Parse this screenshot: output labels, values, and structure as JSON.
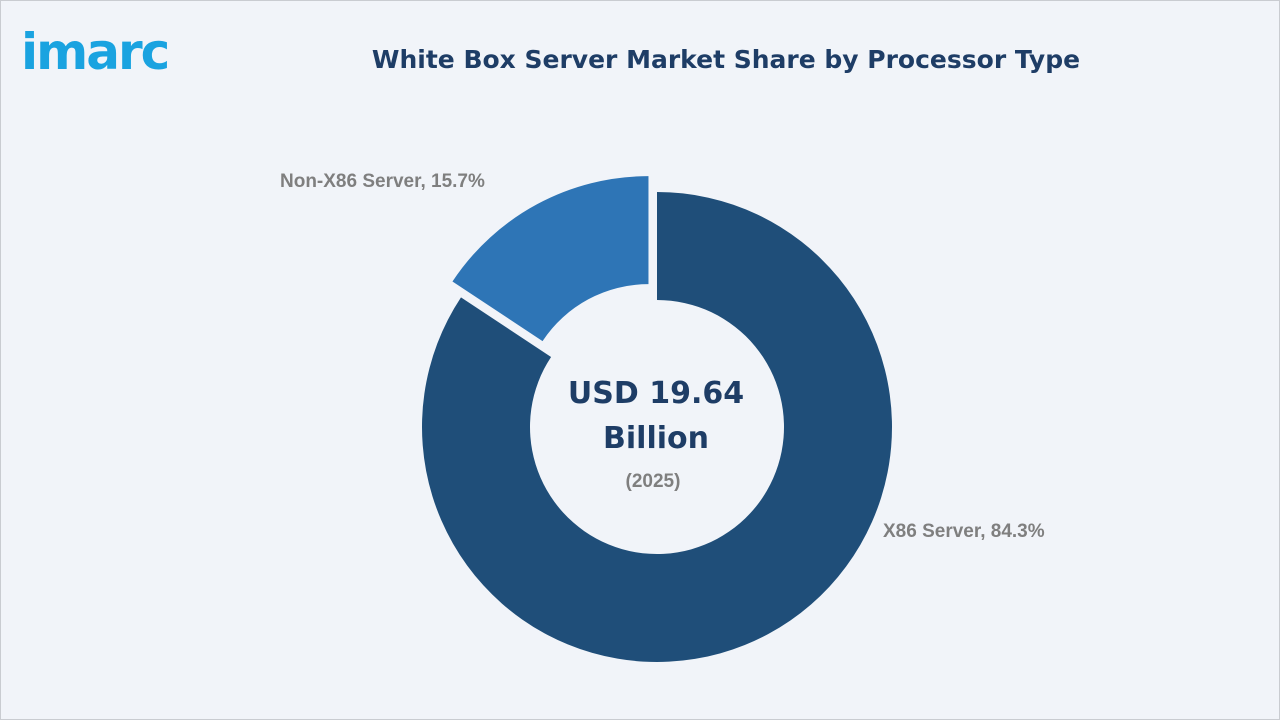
{
  "brand": {
    "logo_text": "imarc",
    "color": "#1aa3e0"
  },
  "title": "White Box Server Market Share by Processor Type",
  "center": {
    "value_line1": "USD 19.64",
    "value_line2": "Billion",
    "year": "(2025)"
  },
  "chart_data": {
    "type": "pie",
    "donut": true,
    "title": "White Box Server Market Share by Processor Type",
    "unit": "%",
    "slices": [
      {
        "label": "X86 Server, 84.3%",
        "name": "X86 Server",
        "value": 84.3,
        "color": "#1f4e79",
        "exploded": false
      },
      {
        "label": "Non-X86 Server, 15.7%",
        "name": "Non-X86 Server",
        "value": 15.7,
        "color": "#2e75b6",
        "exploded": true
      }
    ]
  }
}
